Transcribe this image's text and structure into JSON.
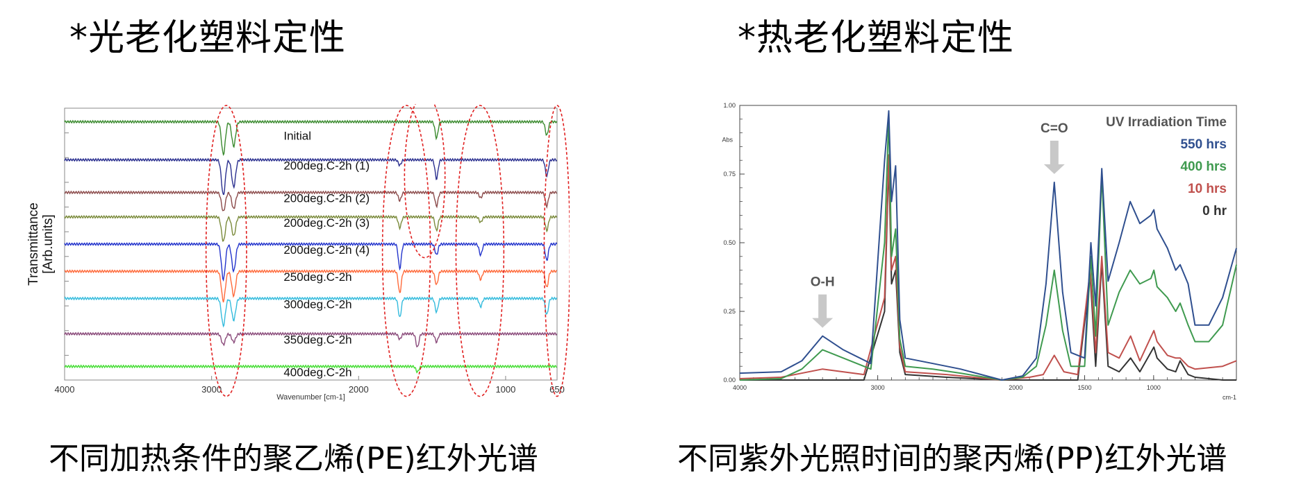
{
  "left_panel": {
    "heading": "*光老化塑料定性",
    "caption": "不同加热条件的聚乙烯(PE)红外光谱"
  },
  "right_panel": {
    "heading": "*热老化塑料定性",
    "caption": "不同紫外光照时间的聚丙烯(PP)红外光谱"
  },
  "chart_data": [
    {
      "type": "line",
      "title": "",
      "xlabel": "Wavenumber [cm-1]",
      "ylabel": "Transmittance\n[Arb.units]",
      "xlim": [
        4000,
        650
      ],
      "x_reversed": true,
      "xticks": [
        "4000",
        "3000",
        "2000",
        "1000",
        "650"
      ],
      "tick_values": [
        4000,
        3000,
        2000,
        1000,
        650
      ],
      "grid": false,
      "stacked_offset_spectra": true,
      "highlight_regions_cm1": [
        [
          3000,
          2800
        ],
        [
          1800,
          1550
        ],
        [
          1650,
          1450
        ],
        [
          1300,
          1050
        ],
        [
          700,
          600
        ]
      ],
      "series": [
        {
          "name": "Initial",
          "color": "#3a8a2e",
          "offset": 0.95,
          "peaks": [
            [
              2920,
              0.12
            ],
            [
              2850,
              0.09
            ],
            [
              1470,
              0.06
            ],
            [
              720,
              0.05
            ]
          ]
        },
        {
          "name": "200deg.C-2h (1)",
          "color": "#2a2f8f",
          "offset": 0.81,
          "peaks": [
            [
              2920,
              0.13
            ],
            [
              2850,
              0.1
            ],
            [
              1720,
              0.02
            ],
            [
              1470,
              0.07
            ],
            [
              720,
              0.06
            ]
          ]
        },
        {
          "name": "200deg.C-2h (2)",
          "color": "#8b4a4a",
          "offset": 0.69,
          "peaks": [
            [
              2920,
              0.07
            ],
            [
              2850,
              0.06
            ],
            [
              1720,
              0.03
            ],
            [
              1470,
              0.05
            ],
            [
              1170,
              0.02
            ],
            [
              720,
              0.05
            ]
          ]
        },
        {
          "name": "200deg.C-2h (3)",
          "color": "#7a8a3a",
          "offset": 0.6,
          "peaks": [
            [
              2920,
              0.09
            ],
            [
              2850,
              0.07
            ],
            [
              1720,
              0.04
            ],
            [
              1470,
              0.05
            ],
            [
              1170,
              0.02
            ],
            [
              720,
              0.05
            ]
          ]
        },
        {
          "name": "200deg.C-2h (4)",
          "color": "#2233cc",
          "offset": 0.5,
          "peaks": [
            [
              2920,
              0.13
            ],
            [
              2850,
              0.1
            ],
            [
              1720,
              0.09
            ],
            [
              1470,
              0.04
            ],
            [
              1170,
              0.04
            ],
            [
              720,
              0.06
            ]
          ]
        },
        {
          "name": "250deg.C-2h",
          "color": "#ff6a3a",
          "offset": 0.4,
          "peaks": [
            [
              2920,
              0.11
            ],
            [
              2850,
              0.09
            ],
            [
              1720,
              0.08
            ],
            [
              1470,
              0.05
            ],
            [
              1170,
              0.03
            ],
            [
              720,
              0.06
            ]
          ]
        },
        {
          "name": "300deg.C-2h",
          "color": "#33bbdd",
          "offset": 0.3,
          "peaks": [
            [
              2920,
              0.1
            ],
            [
              2850,
              0.08
            ],
            [
              1720,
              0.07
            ],
            [
              1470,
              0.05
            ],
            [
              1170,
              0.03
            ],
            [
              720,
              0.06
            ]
          ]
        },
        {
          "name": "350deg.C-2h",
          "color": "#8a4a7a",
          "offset": 0.17,
          "peaks": [
            [
              2920,
              0.04
            ],
            [
              2850,
              0.03
            ],
            [
              1720,
              0.02
            ],
            [
              1600,
              0.05
            ],
            [
              1470,
              0.03
            ]
          ]
        },
        {
          "name": "400deg.C-2h",
          "color": "#44dd33",
          "offset": 0.05,
          "peaks": [
            [
              1600,
              0.02
            ]
          ]
        }
      ]
    },
    {
      "type": "line",
      "title": "UV Irradiation Time",
      "xlabel": "cm-1",
      "ylabel": "Abs",
      "xlim": [
        4000,
        400
      ],
      "x_reversed": true,
      "ylim": [
        0,
        1.0
      ],
      "xticks": [
        "4000",
        "3000",
        "2000",
        "1500",
        "1000"
      ],
      "yticks": [
        "1.00",
        "0.75",
        "0.50",
        "0.25",
        "0.00"
      ],
      "grid": false,
      "annotations": [
        {
          "text": "O-H",
          "x": 3400,
          "y": 0.16
        },
        {
          "text": "C=O",
          "x": 1720,
          "y": 0.72
        }
      ],
      "series": [
        {
          "name": "550 hrs",
          "color": "#2f4f8f",
          "x": [
            4000,
            3700,
            3550,
            3400,
            3250,
            3050,
            2950,
            2920,
            2900,
            2870,
            2840,
            2800,
            2600,
            2400,
            2100,
            1950,
            1850,
            1780,
            1720,
            1660,
            1600,
            1500,
            1455,
            1420,
            1376,
            1330,
            1250,
            1170,
            1100,
            1020,
            998,
            975,
            900,
            840,
            808,
            750,
            700,
            600,
            500,
            400
          ],
          "y": [
            0.025,
            0.03,
            0.07,
            0.16,
            0.11,
            0.06,
            0.8,
            0.98,
            0.65,
            0.78,
            0.22,
            0.08,
            0.06,
            0.04,
            0.0,
            0.015,
            0.08,
            0.35,
            0.72,
            0.32,
            0.1,
            0.08,
            0.5,
            0.27,
            0.77,
            0.36,
            0.5,
            0.65,
            0.57,
            0.6,
            0.62,
            0.55,
            0.48,
            0.4,
            0.42,
            0.35,
            0.2,
            0.2,
            0.3,
            0.48
          ]
        },
        {
          "name": "400 hrs",
          "color": "#3f9a4f",
          "x": [
            4000,
            3700,
            3550,
            3400,
            3250,
            3050,
            2950,
            2920,
            2900,
            2870,
            2840,
            2800,
            2600,
            2400,
            2100,
            1950,
            1850,
            1780,
            1720,
            1660,
            1600,
            1500,
            1455,
            1420,
            1376,
            1330,
            1250,
            1170,
            1100,
            1020,
            998,
            975,
            900,
            840,
            808,
            750,
            700,
            600,
            500,
            400
          ],
          "y": [
            0.0,
            0.005,
            0.04,
            0.11,
            0.08,
            0.04,
            0.5,
            0.96,
            0.45,
            0.55,
            0.15,
            0.05,
            0.04,
            0.025,
            0.0,
            0.01,
            0.05,
            0.2,
            0.4,
            0.18,
            0.05,
            0.05,
            0.45,
            0.16,
            0.75,
            0.2,
            0.32,
            0.4,
            0.35,
            0.37,
            0.4,
            0.34,
            0.3,
            0.25,
            0.28,
            0.2,
            0.14,
            0.14,
            0.2,
            0.42
          ]
        },
        {
          "name": "10 hrs",
          "color": "#c0504d",
          "x": [
            4000,
            3700,
            3400,
            3100,
            2950,
            2920,
            2900,
            2870,
            2840,
            2800,
            2500,
            2100,
            1900,
            1800,
            1720,
            1650,
            1550,
            1460,
            1420,
            1376,
            1330,
            1250,
            1167,
            1100,
            998,
            975,
            900,
            840,
            808,
            750,
            700,
            500,
            400
          ],
          "y": [
            0.005,
            0.01,
            0.04,
            0.02,
            0.3,
            0.82,
            0.4,
            0.45,
            0.12,
            0.03,
            0.02,
            0.0,
            0.01,
            0.02,
            0.09,
            0.03,
            0.02,
            0.4,
            0.1,
            0.45,
            0.1,
            0.08,
            0.16,
            0.07,
            0.18,
            0.14,
            0.09,
            0.08,
            0.08,
            0.05,
            0.04,
            0.05,
            0.07
          ]
        },
        {
          "name": "0 hr",
          "color": "#333333",
          "x": [
            4000,
            3700,
            3400,
            3100,
            2950,
            2920,
            2900,
            2870,
            2840,
            2800,
            2500,
            2100,
            1900,
            1800,
            1720,
            1650,
            1550,
            1460,
            1420,
            1376,
            1330,
            1250,
            1167,
            1100,
            998,
            975,
            900,
            840,
            808,
            750,
            700,
            500,
            400
          ],
          "y": [
            0.0,
            0.0,
            0.0,
            0.0,
            0.25,
            0.8,
            0.35,
            0.4,
            0.1,
            0.02,
            0.01,
            0.0,
            0.0,
            0.0,
            0.0,
            0.0,
            0.0,
            0.38,
            0.05,
            0.43,
            0.05,
            0.03,
            0.08,
            0.03,
            0.12,
            0.08,
            0.04,
            0.03,
            0.07,
            0.02,
            0.01,
            0.0,
            0.0
          ]
        }
      ]
    }
  ]
}
